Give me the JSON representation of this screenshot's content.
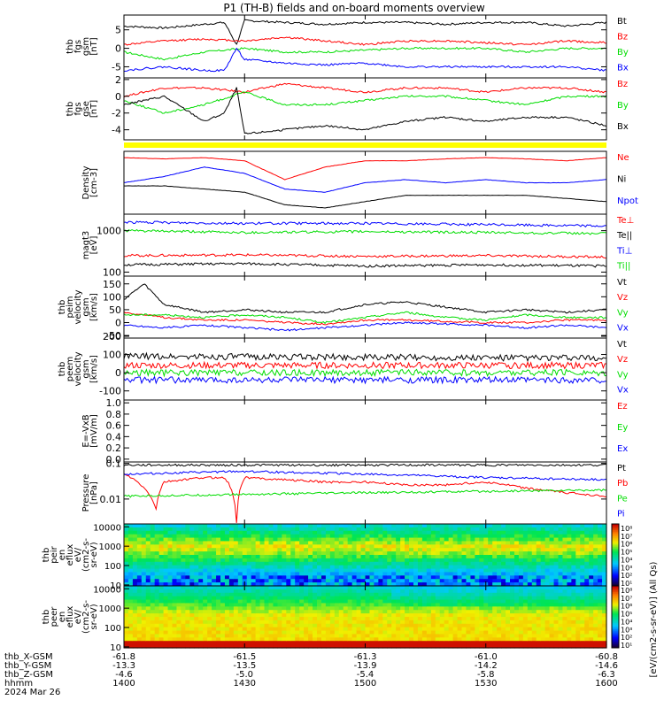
{
  "title": "P1 (TH-B) fields and on-board moments overview",
  "colors": {
    "black": "#000000",
    "red": "#ff0000",
    "green": "#00dd00",
    "blue": "#0000ff",
    "yellow": "#ffff00"
  },
  "chart_data": [
    {
      "id": "fgs_gsm",
      "type": "line",
      "ylabel": [
        "thb",
        "fgs",
        "gsm",
        "[nT]"
      ],
      "ylim": [
        -8,
        9
      ],
      "yticks": [
        "5",
        "0",
        "-5"
      ],
      "ytick_values": [
        5,
        0,
        -5
      ],
      "series": [
        {
          "name": "Bt",
          "color": "#000000",
          "x": [
            1400,
            1410,
            1420,
            1425,
            1428,
            1430,
            1440,
            1450,
            1500,
            1510,
            1520,
            1530,
            1540,
            1550,
            1600
          ],
          "values": [
            6,
            5.5,
            6.5,
            7,
            1,
            7.5,
            7,
            6.5,
            7,
            7,
            6.5,
            7,
            7,
            6,
            7
          ]
        },
        {
          "name": "Bz",
          "color": "#ff0000",
          "x": [
            1400,
            1410,
            1420,
            1430,
            1440,
            1450,
            1500,
            1510,
            1520,
            1530,
            1540,
            1550,
            1600
          ],
          "values": [
            1,
            2,
            2.5,
            2,
            3,
            2,
            1,
            2,
            2,
            1.5,
            1,
            2,
            1.5
          ]
        },
        {
          "name": "By",
          "color": "#00dd00",
          "x": [
            1400,
            1410,
            1420,
            1430,
            1440,
            1450,
            1500,
            1510,
            1520,
            1530,
            1540,
            1550,
            1600
          ],
          "values": [
            -1,
            -3,
            -1,
            0,
            -1,
            -1,
            -0.5,
            0,
            0,
            0,
            -1,
            0,
            0
          ]
        },
        {
          "name": "Bx",
          "color": "#0000ff",
          "x": [
            1400,
            1410,
            1420,
            1425,
            1428,
            1430,
            1440,
            1450,
            1500,
            1510,
            1520,
            1530,
            1540,
            1550,
            1600
          ],
          "values": [
            -6,
            -5,
            -6,
            -6,
            0,
            -3,
            -4,
            -4.5,
            -4,
            -5,
            -5,
            -5,
            -5,
            -5,
            -6
          ]
        }
      ]
    },
    {
      "id": "fgs_gse",
      "type": "line",
      "ylabel": [
        "thb",
        "fgs",
        "gse",
        "[nT]"
      ],
      "ylim": [
        -5.2,
        2.2
      ],
      "yticks": [
        "2",
        "0",
        "-2",
        "-4"
      ],
      "ytick_values": [
        2,
        0,
        -2,
        -4
      ],
      "series": [
        {
          "name": "Bz",
          "color": "#ff0000",
          "x": [
            1400,
            1410,
            1420,
            1430,
            1440,
            1450,
            1500,
            1510,
            1520,
            1530,
            1540,
            1550,
            1600
          ],
          "values": [
            0,
            1,
            1,
            0.5,
            1.5,
            1,
            0.5,
            1,
            1,
            0.5,
            1,
            1,
            0.5
          ]
        },
        {
          "name": "By",
          "color": "#00dd00",
          "x": [
            1400,
            1410,
            1420,
            1430,
            1440,
            1450,
            1500,
            1510,
            1520,
            1530,
            1540,
            1550,
            1600
          ],
          "values": [
            -0.5,
            -2,
            -1,
            0.5,
            -1,
            -1,
            -0.5,
            0,
            0,
            -0.5,
            -1,
            0,
            0
          ]
        },
        {
          "name": "Bx",
          "color": "#000000",
          "x": [
            1400,
            1410,
            1420,
            1425,
            1428,
            1430,
            1440,
            1450,
            1500,
            1510,
            1520,
            1530,
            1540,
            1550,
            1600
          ],
          "values": [
            -1,
            0,
            -3,
            -2,
            1,
            -4.5,
            -4,
            -3.5,
            -4,
            -3,
            -2.5,
            -3,
            -2.5,
            -2.5,
            -3.5
          ]
        }
      ]
    },
    {
      "id": "density",
      "type": "line",
      "ylabel": [
        "Density",
        "[cm-3]"
      ],
      "ylim": [
        0,
        1
      ],
      "yticks": [],
      "ytick_values": [],
      "series": [
        {
          "name": "Ne",
          "color": "#ff0000",
          "x": [
            1400,
            1410,
            1420,
            1430,
            1440,
            1450,
            1500,
            1510,
            1520,
            1530,
            1540,
            1550,
            1600
          ],
          "values": [
            0.9,
            0.88,
            0.9,
            0.85,
            0.55,
            0.75,
            0.85,
            0.85,
            0.88,
            0.9,
            0.88,
            0.85,
            0.9
          ]
        },
        {
          "name": "Ni",
          "color": "#000000",
          "x": [
            1400,
            1410,
            1420,
            1430,
            1440,
            1450,
            1500,
            1510,
            1520,
            1530,
            1540,
            1550,
            1600
          ],
          "values": [
            0.45,
            0.45,
            0.4,
            0.35,
            0.15,
            0.1,
            0.2,
            0.3,
            0.3,
            0.3,
            0.3,
            0.25,
            0.2
          ]
        },
        {
          "name": "Npot",
          "color": "#0000ff",
          "x": [
            1400,
            1410,
            1420,
            1430,
            1440,
            1450,
            1500,
            1510,
            1520,
            1530,
            1540,
            1550,
            1600
          ],
          "values": [
            0.5,
            0.6,
            0.75,
            0.65,
            0.4,
            0.35,
            0.5,
            0.55,
            0.5,
            0.55,
            0.5,
            0.5,
            0.55
          ]
        }
      ]
    },
    {
      "id": "temps",
      "type": "line",
      "ylabel": [
        "magt3",
        "[eV]"
      ],
      "ylim": [
        80,
        2500
      ],
      "log": true,
      "yticks": [
        "1000",
        "100"
      ],
      "ytick_values": [
        1000,
        100
      ],
      "series": [
        {
          "name": "Te⊥",
          "color": "#ff0000",
          "x": [
            1400,
            1430,
            1500,
            1530,
            1600
          ],
          "values": [
            250,
            260,
            240,
            250,
            230
          ]
        },
        {
          "name": "Te||",
          "color": "#000000",
          "x": [
            1400,
            1430,
            1500,
            1530,
            1600
          ],
          "values": [
            150,
            160,
            140,
            150,
            140
          ]
        },
        {
          "name": "Ti⊥",
          "color": "#0000ff",
          "x": [
            1400,
            1430,
            1500,
            1530,
            1600
          ],
          "values": [
            1600,
            1500,
            1500,
            1400,
            1300
          ]
        },
        {
          "name": "Ti||",
          "color": "#00dd00",
          "x": [
            1400,
            1430,
            1500,
            1530,
            1600
          ],
          "values": [
            1000,
            900,
            950,
            900,
            850
          ]
        }
      ]
    },
    {
      "id": "peim_vel",
      "type": "line",
      "ylabel": [
        "thb",
        "peim",
        "velocity",
        "gsm",
        "[km/s]"
      ],
      "ylim": [
        -60,
        180
      ],
      "yticks": [
        "150",
        "100",
        "50",
        "0",
        "-50"
      ],
      "ytick_values": [
        150,
        100,
        50,
        0,
        -50
      ],
      "series": [
        {
          "name": "Vt",
          "color": "#000000",
          "x": [
            1400,
            1405,
            1410,
            1420,
            1430,
            1440,
            1450,
            1500,
            1510,
            1520,
            1530,
            1540,
            1550,
            1600
          ],
          "values": [
            90,
            150,
            70,
            40,
            50,
            40,
            40,
            70,
            80,
            60,
            40,
            50,
            40,
            50
          ]
        },
        {
          "name": "Vz",
          "color": "#ff0000",
          "x": [
            1400,
            1410,
            1420,
            1430,
            1440,
            1450,
            1500,
            1510,
            1520,
            1530,
            1540,
            1550,
            1600
          ],
          "values": [
            40,
            20,
            10,
            10,
            0,
            -5,
            10,
            10,
            5,
            0,
            0,
            10,
            10
          ]
        },
        {
          "name": "Vy",
          "color": "#00dd00",
          "x": [
            1400,
            1410,
            1420,
            1430,
            1440,
            1450,
            1500,
            1510,
            1520,
            1530,
            1540,
            1550,
            1600
          ],
          "values": [
            30,
            30,
            20,
            30,
            20,
            0,
            20,
            40,
            20,
            10,
            30,
            20,
            20
          ]
        },
        {
          "name": "Vx",
          "color": "#0000ff",
          "x": [
            1400,
            1410,
            1420,
            1430,
            1440,
            1450,
            1500,
            1510,
            1520,
            1530,
            1540,
            1550,
            1600
          ],
          "values": [
            -10,
            -20,
            -10,
            -20,
            -30,
            -20,
            -10,
            0,
            -5,
            -10,
            -20,
            -10,
            -20
          ]
        }
      ]
    },
    {
      "id": "peem_vel",
      "type": "line",
      "ylabel": [
        "thb",
        "peem",
        "velocity",
        "gsm",
        "[km/s]"
      ],
      "ylim": [
        -150,
        190
      ],
      "yticks": [
        "200",
        "100",
        "0",
        "-100"
      ],
      "ytick_values": [
        200,
        100,
        0,
        -100
      ],
      "series": [
        {
          "name": "Vt",
          "color": "#000000",
          "x": [
            1400,
            1600
          ],
          "values": [
            90,
            80
          ]
        },
        {
          "name": "Vz",
          "color": "#ff0000",
          "x": [
            1400,
            1600
          ],
          "values": [
            40,
            40
          ]
        },
        {
          "name": "Vy",
          "color": "#00dd00",
          "x": [
            1400,
            1600
          ],
          "values": [
            0,
            0
          ]
        },
        {
          "name": "Vx",
          "color": "#0000ff",
          "x": [
            1400,
            1600
          ],
          "values": [
            -40,
            -40
          ]
        }
      ]
    },
    {
      "id": "efield",
      "type": "line",
      "ylabel": [
        "E=-VxB",
        "[mV/m]"
      ],
      "ylim": [
        -0.05,
        1.05
      ],
      "yticks": [
        "1.0",
        "0.8",
        "0.6",
        "0.4",
        "0.2",
        "0.0"
      ],
      "ytick_values": [
        1.0,
        0.8,
        0.6,
        0.4,
        0.2,
        0.0
      ],
      "series": [
        {
          "name": "Ez",
          "color": "#ff0000",
          "values": []
        },
        {
          "name": "Ey",
          "color": "#00dd00",
          "values": []
        },
        {
          "name": "Ex",
          "color": "#0000ff",
          "values": []
        }
      ]
    },
    {
      "id": "pressure",
      "type": "line",
      "ylabel": [
        "Pressure",
        "[nPa]"
      ],
      "ylim": [
        0.002,
        0.11
      ],
      "log": true,
      "yticks": [
        "0.1",
        "0.01"
      ],
      "ytick_values": [
        0.1,
        0.01
      ],
      "series": [
        {
          "name": "Pt",
          "color": "#000000",
          "x": [
            1400,
            1600
          ],
          "values": [
            0.09,
            0.09
          ]
        },
        {
          "name": "Pb",
          "color": "#ff0000",
          "x": [
            1400,
            1405,
            1408,
            1410,
            1420,
            1425,
            1428,
            1430,
            1440,
            1450,
            1500,
            1510,
            1520,
            1530,
            1540,
            1550,
            1600
          ],
          "values": [
            0.05,
            0.02,
            0.005,
            0.03,
            0.04,
            0.04,
            0.002,
            0.04,
            0.035,
            0.03,
            0.03,
            0.025,
            0.025,
            0.03,
            0.02,
            0.015,
            0.012
          ]
        },
        {
          "name": "Pe",
          "color": "#00dd00",
          "x": [
            1400,
            1600
          ],
          "values": [
            0.012,
            0.018
          ]
        },
        {
          "name": "Pi",
          "color": "#0000ff",
          "x": [
            1400,
            1430,
            1500,
            1530,
            1600
          ],
          "values": [
            0.05,
            0.06,
            0.05,
            0.04,
            0.035
          ]
        }
      ]
    },
    {
      "id": "peir_spec",
      "type": "heatmap",
      "ylabel": [
        "thb",
        "peir",
        "en",
        "eflux",
        "eV/",
        "(cm2-s-",
        "sr-eV)"
      ],
      "yticks": [
        "10000",
        "1000",
        "100",
        "10"
      ],
      "ytick_values": [
        10000,
        1000,
        100,
        10
      ],
      "colorbar_ticks": [
        "10⁸",
        "10⁷",
        "10⁶",
        "10⁵",
        "10⁴",
        "10³",
        "10²",
        "10¹"
      ]
    },
    {
      "id": "peer_spec",
      "type": "heatmap",
      "ylabel": [
        "thb",
        "peer",
        "en",
        "eflux",
        "eV/",
        "(cm2-s-",
        "sr-eV)"
      ],
      "yticks": [
        "10000",
        "1000",
        "100",
        "10"
      ],
      "ytick_values": [
        10000,
        1000,
        100,
        10
      ],
      "colorbar_ticks": [
        "10⁸",
        "10⁷",
        "10⁶",
        "10⁵",
        "10⁴",
        "10³",
        "10²",
        "10¹"
      ]
    }
  ],
  "colorbar_label": "[eV/(cm2-s-sr-eV)] (All Qs)",
  "x_axis": {
    "rows": [
      {
        "label": "thb_X-GSM",
        "values": [
          "-61.8",
          "-61.5",
          "-61.3",
          "-61.0",
          "-60.8"
        ]
      },
      {
        "label": "thb_Y-GSM",
        "values": [
          "-13.3",
          "-13.5",
          "-13.9",
          "-14.2",
          "-14.6"
        ]
      },
      {
        "label": "thb_Z-GSM",
        "values": [
          "-4.6",
          "-5.0",
          "-5.4",
          "-5.8",
          "-6.3"
        ]
      },
      {
        "label": "hhmm",
        "values": [
          "1400",
          "1430",
          "1500",
          "1530",
          "1600"
        ]
      }
    ],
    "date": "2024 Mar 26",
    "range": [
      1400,
      1600
    ]
  }
}
